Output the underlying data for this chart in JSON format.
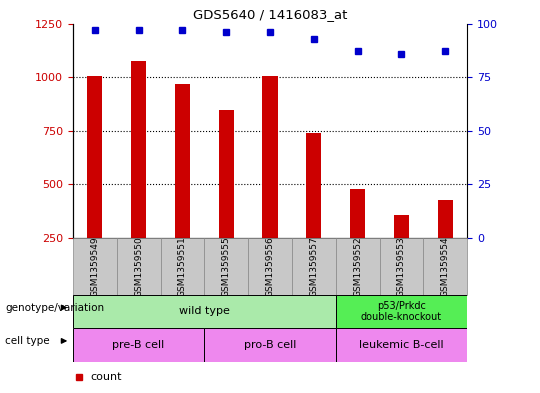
{
  "title": "GDS5640 / 1416083_at",
  "samples": [
    "GSM1359549",
    "GSM1359550",
    "GSM1359551",
    "GSM1359555",
    "GSM1359556",
    "GSM1359557",
    "GSM1359552",
    "GSM1359553",
    "GSM1359554"
  ],
  "counts": [
    1005,
    1075,
    970,
    845,
    1005,
    740,
    480,
    355,
    425
  ],
  "percentiles": [
    97,
    97,
    97,
    96,
    96,
    93,
    87,
    86,
    87
  ],
  "ylim_left": [
    250,
    1250
  ],
  "yticks_left": [
    250,
    500,
    750,
    1000,
    1250
  ],
  "yticks_right": [
    0,
    25,
    50,
    75,
    100
  ],
  "gridlines": [
    500,
    750,
    1000
  ],
  "bar_color": "#cc0000",
  "dot_color": "#0000cc",
  "sample_bg": "#c8c8c8",
  "wt_color": "#aaeaaa",
  "cell_color": "#ee88ee",
  "xlabel_genotype": "genotype/variation",
  "xlabel_celltype": "cell type"
}
